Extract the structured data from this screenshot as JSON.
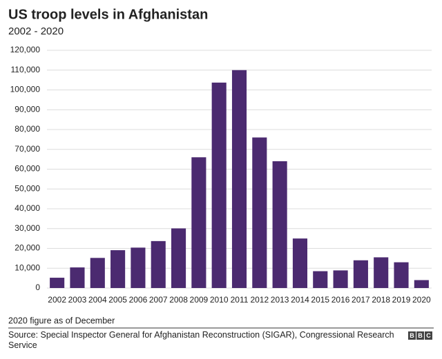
{
  "chart_data": {
    "type": "bar",
    "title": "US troop levels in Afghanistan",
    "subtitle": "2002 - 2020",
    "categories": [
      "2002",
      "2003",
      "2004",
      "2005",
      "2006",
      "2007",
      "2008",
      "2009",
      "2010",
      "2011",
      "2012",
      "2013",
      "2014",
      "2015",
      "2016",
      "2017",
      "2018",
      "2019",
      "2020"
    ],
    "values": [
      5200,
      10400,
      15200,
      19100,
      20400,
      23700,
      30100,
      66000,
      103700,
      110000,
      76000,
      64000,
      25000,
      8500,
      8900,
      14000,
      15500,
      13000,
      4000
    ],
    "color": "#4b2a70",
    "ylim": [
      0,
      120000
    ],
    "yticks": [
      0,
      {
        "value": 10000,
        "label": "10,000"
      },
      {
        "value": 20000,
        "label": "20,000"
      },
      {
        "value": 30000,
        "label": "30,000"
      },
      {
        "value": 40000,
        "label": "40,000"
      },
      {
        "value": 50000,
        "label": "50,000"
      },
      {
        "value": 60000,
        "label": "60,000"
      },
      {
        "value": 70000,
        "label": "70,000"
      },
      {
        "value": 80000,
        "label": "80,000"
      },
      {
        "value": 90000,
        "label": "90,000"
      },
      {
        "value": 100000,
        "label": "100,000"
      },
      {
        "value": 110000,
        "label": "110,000"
      },
      {
        "value": 120000,
        "label": "120,000"
      }
    ],
    "grid": true,
    "note": "2020 figure as of December",
    "source": "Source: Special Inspector General for Afghanistan Reconstruction (SIGAR), Congressional Research Service",
    "logo": [
      "B",
      "B",
      "C"
    ]
  }
}
